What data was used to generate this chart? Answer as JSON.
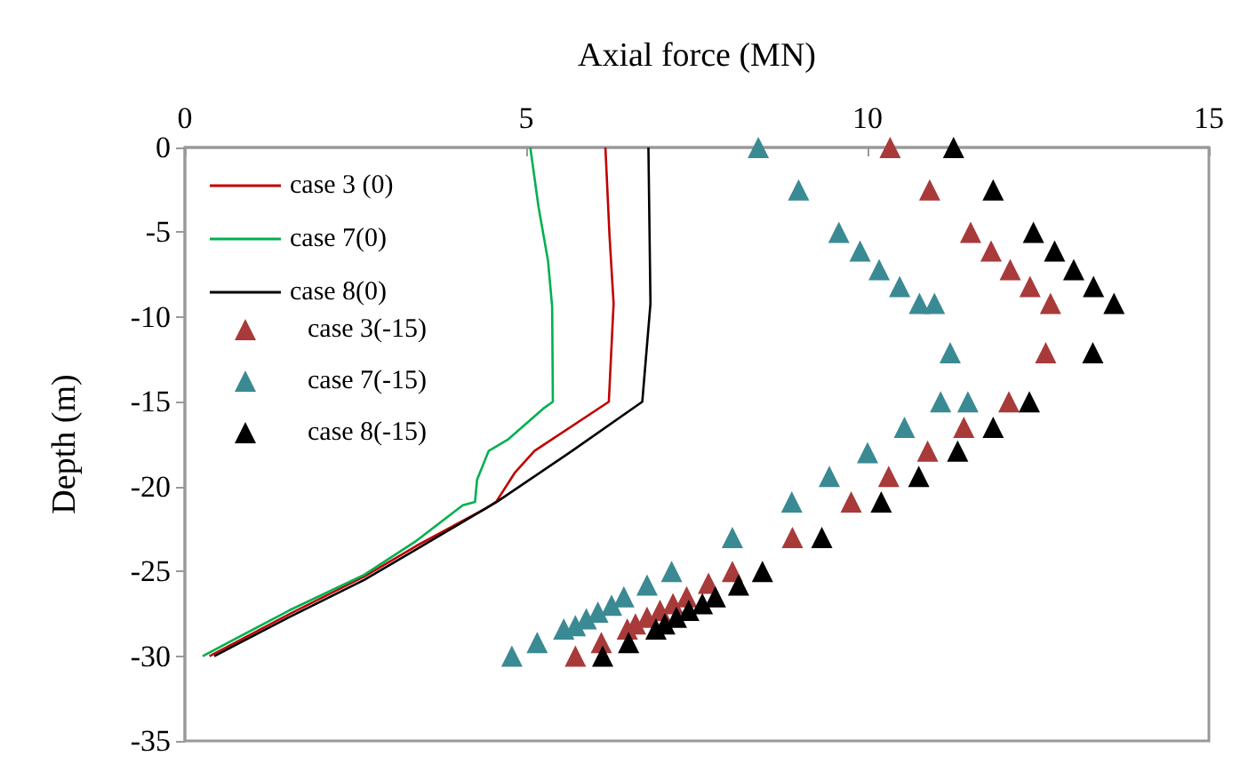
{
  "chart_data": {
    "type": "line",
    "xlabel": "Axial force (MN)",
    "ylabel": "Depth (m)",
    "xlim": [
      0,
      15
    ],
    "xticks": [
      0,
      5,
      10,
      15
    ],
    "ylim": [
      -35,
      0
    ],
    "yticks": [
      -35,
      -30,
      -25,
      -20,
      -15,
      -10,
      -5,
      0
    ],
    "grid": false,
    "legend": "top left",
    "series": [
      {
        "name": "case 3 (0)",
        "color": "#c00000",
        "x": [
          6.16,
          6.22,
          6.28,
          6.21,
          5.12,
          4.83,
          4.56,
          4.4,
          3.39,
          2.63,
          1.54,
          0.36
        ],
        "values": [
          0,
          -5.2,
          -9.2,
          -15,
          -17.9,
          -19.2,
          -20.9,
          -21.3,
          -23.5,
          -25.3,
          -27.5,
          -30
        ]
      },
      {
        "name": "case 7(0)",
        "color": "#00b050",
        "x": [
          5.06,
          5.18,
          5.32,
          5.38,
          5.39,
          5.25,
          4.74,
          4.45,
          4.28,
          4.25,
          4.07,
          3.39,
          2.63,
          1.53,
          0.26
        ],
        "values": [
          0,
          -3.5,
          -6.7,
          -9.4,
          -15,
          -15.4,
          -17.2,
          -17.9,
          -19.6,
          -20.9,
          -21.1,
          -23.2,
          -25.2,
          -27.3,
          -30
        ]
      },
      {
        "name": "case 8(0)",
        "color": "#000000",
        "x": [
          6.79,
          6.82,
          6.7,
          5.67,
          4.57,
          3.39,
          2.63,
          1.53,
          0.43
        ],
        "values": [
          0,
          -9.2,
          -15,
          -17.9,
          -20.9,
          -23.7,
          -25.5,
          -27.7,
          -30
        ]
      },
      {
        "name": "case 3(-15)",
        "type": "scatter",
        "marker": "triangle",
        "color": "#a83a3a",
        "x": [
          10.33,
          10.91,
          11.51,
          11.81,
          12.09,
          12.38,
          12.68,
          12.61,
          12.07,
          11.41,
          10.88,
          10.31,
          9.76,
          8.9,
          8.02,
          7.67,
          7.35,
          7.15,
          6.96,
          6.77,
          6.6,
          6.48,
          6.1,
          5.72
        ],
        "values": [
          0,
          -2.5,
          -5,
          -6.1,
          -7.2,
          -8.2,
          -9.2,
          -12.1,
          -15,
          -16.5,
          -17.9,
          -19.4,
          -20.9,
          -23,
          -25,
          -25.7,
          -26.5,
          -26.9,
          -27.3,
          -27.7,
          -28.1,
          -28.4,
          -29.2,
          -30
        ]
      },
      {
        "name": "case 7(-15)",
        "type": "scatter",
        "marker": "triangle",
        "color": "#3a8a94",
        "x": [
          8.4,
          8.99,
          9.58,
          9.89,
          10.17,
          10.47,
          10.76,
          10.98,
          11.21,
          11.07,
          11.47,
          10.54,
          10.0,
          9.44,
          8.89,
          8.02,
          7.13,
          6.77,
          6.43,
          6.25,
          6.05,
          5.88,
          5.72,
          5.55,
          5.16,
          4.79
        ],
        "values": [
          0,
          -2.5,
          -5,
          -6.1,
          -7.2,
          -8.2,
          -9.2,
          -9.2,
          -12.1,
          -15,
          -15,
          -16.5,
          -18,
          -19.4,
          -20.9,
          -23,
          -25,
          -25.8,
          -26.5,
          -27,
          -27.4,
          -27.8,
          -28.2,
          -28.4,
          -29.2,
          -30
        ]
      },
      {
        "name": "case 8(-15)",
        "type": "scatter",
        "marker": "triangle",
        "color": "#000000",
        "x": [
          11.26,
          11.84,
          12.43,
          12.74,
          13.02,
          13.31,
          13.61,
          13.3,
          12.37,
          11.84,
          11.32,
          10.75,
          10.2,
          9.33,
          8.46,
          8.11,
          7.77,
          7.58,
          7.38,
          7.2,
          7.03,
          6.9,
          6.5,
          6.12
        ],
        "values": [
          0,
          -2.5,
          -5,
          -6.1,
          -7.2,
          -8.2,
          -9.2,
          -12.1,
          -15,
          -16.5,
          -17.9,
          -19.4,
          -20.9,
          -23,
          -25,
          -25.8,
          -26.5,
          -26.9,
          -27.3,
          -27.7,
          -28.1,
          -28.4,
          -29.2,
          -30
        ]
      }
    ]
  }
}
